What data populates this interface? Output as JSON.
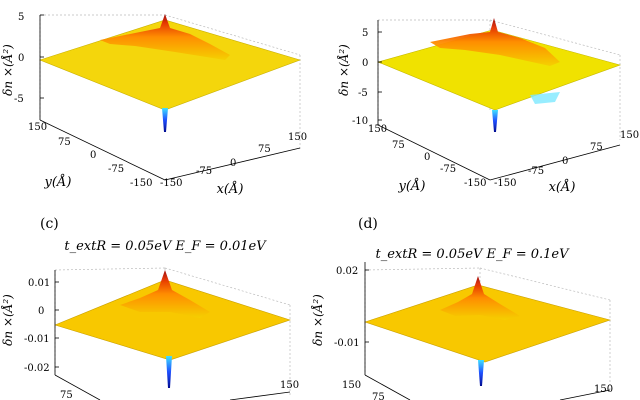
{
  "figure": {
    "panels": [
      {
        "id": "a",
        "letter": "",
        "title": "",
        "ylabel": "δn ×(Å²)",
        "xlabel": "x(Å)",
        "zlabel_y": "y(Å)",
        "zticks": [
          "5",
          "0",
          "-5"
        ],
        "xticks": [
          "-150",
          "-75",
          "0",
          "75",
          "150"
        ],
        "yticks": [
          "150",
          "75",
          "0",
          "-75",
          "-150"
        ]
      },
      {
        "id": "b",
        "letter": "",
        "title": "",
        "ylabel": "δn ×(Å²)",
        "xlabel": "x(Å)",
        "zlabel_y": "y(Å)",
        "zticks": [
          "5",
          "0",
          "-5",
          "-10"
        ],
        "xticks": [
          "-150",
          "-75",
          "0",
          "75",
          "150"
        ],
        "yticks": [
          "150",
          "75",
          "0",
          "-75",
          "-150"
        ]
      },
      {
        "id": "c",
        "letter": "(c)",
        "title": "t_extR = 0.05eV E_F = 0.01eV",
        "ylabel": "δn ×(Å²)",
        "xlabel": "",
        "zlabel_y": "",
        "zticks": [
          "0.01",
          "0",
          "-0.01",
          "-0.02"
        ],
        "xticks": [
          "150"
        ],
        "yticks": [
          "75"
        ]
      },
      {
        "id": "d",
        "letter": "(d)",
        "title": "t_extR = 0.05eV E_F = 0.1eV",
        "ylabel": "δn ×(Å²)",
        "xlabel": "",
        "zlabel_y": "",
        "zticks": [
          "0.02",
          "-0.01"
        ],
        "xticks": [
          "150"
        ],
        "yticks": [
          "150",
          "75"
        ]
      }
    ]
  },
  "chart_data": [
    {
      "type": "surface",
      "title": "",
      "xlabel": "x(Å)",
      "ylabel": "y(Å)",
      "zlabel": "δn ×(Å²)",
      "xlim": [
        -150,
        150
      ],
      "ylim": [
        -150,
        150
      ],
      "zlim": [
        -8,
        6
      ],
      "peak_max": 5.5,
      "peak_min": -7,
      "colormap": "jet",
      "grid": true
    },
    {
      "type": "surface",
      "title": "",
      "xlabel": "x(Å)",
      "ylabel": "y(Å)",
      "zlabel": "δn ×(Å²)",
      "xlim": [
        -150,
        150
      ],
      "ylim": [
        -150,
        150
      ],
      "zlim": [
        -10,
        7
      ],
      "peak_max": 6.5,
      "peak_min": -9,
      "colormap": "jet",
      "grid": true
    },
    {
      "type": "surface",
      "title": "t_extR = 0.05eV E_F = 0.01eV",
      "xlabel": "",
      "ylabel": "",
      "zlabel": "δn ×(Å²)",
      "xlim": [
        -150,
        150
      ],
      "ylim": [
        -150,
        150
      ],
      "zlim": [
        -0.02,
        0.012
      ],
      "peak_max": 0.011,
      "peak_min": -0.02,
      "colormap": "jet",
      "grid": true
    },
    {
      "type": "surface",
      "title": "t_extR = 0.05eV E_F = 0.1eV",
      "xlabel": "",
      "ylabel": "",
      "zlabel": "δn ×(Å²)",
      "xlim": [
        -150,
        150
      ],
      "ylim": [
        -150,
        150
      ],
      "zlim": [
        -0.02,
        0.025
      ],
      "peak_max": 0.022,
      "peak_min": -0.018,
      "colormap": "jet",
      "grid": true
    }
  ]
}
